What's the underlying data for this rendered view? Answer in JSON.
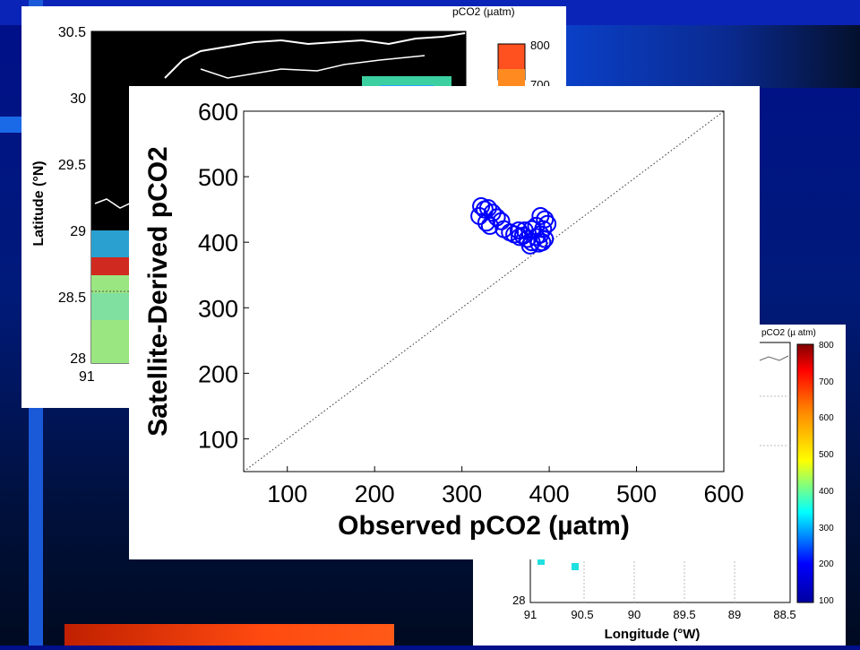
{
  "background_colors": {
    "primary": "#000f8a",
    "band": "#0a24b8",
    "strip": "#1a5ad8",
    "accent_bar": "#ff4a10"
  },
  "map_back": {
    "colorbar_title": "pCO2 (µatm)",
    "colorbar_ticks": [
      "800",
      "700"
    ],
    "y_ticks": [
      "30.5",
      "30",
      "29.5",
      "29",
      "28.5",
      "28"
    ],
    "ylabel": "Latitude (°N)",
    "x_tick_visible": "91"
  },
  "map_right": {
    "colorbar_title": "pCO2 (µ atm)",
    "colorbar_ticks": [
      "800",
      "700",
      "600",
      "500",
      "400",
      "300",
      "200",
      "100"
    ],
    "y_tick_visible": "28",
    "x_ticks": [
      "91",
      "90.5",
      "90",
      "89.5",
      "89",
      "88.5"
    ],
    "xlabel": "Longitude (°W)"
  },
  "chart_data": {
    "type": "scatter",
    "xlabel": "Observed pCO2 (µatm)",
    "ylabel": "Satellite-Derived pCO2",
    "xlim": [
      50,
      600
    ],
    "ylim": [
      50,
      600
    ],
    "x_ticks": [
      100,
      200,
      300,
      400,
      500,
      600
    ],
    "y_ticks": [
      100,
      200,
      300,
      400,
      500,
      600
    ],
    "reference_line": "1:1 dotted",
    "marker_color": "#0000ff",
    "points": [
      [
        322,
        455
      ],
      [
        326,
        450
      ],
      [
        330,
        452
      ],
      [
        320,
        440
      ],
      [
        335,
        445
      ],
      [
        328,
        430
      ],
      [
        340,
        438
      ],
      [
        345,
        432
      ],
      [
        332,
        425
      ],
      [
        348,
        420
      ],
      [
        355,
        415
      ],
      [
        360,
        412
      ],
      [
        365,
        418
      ],
      [
        370,
        410
      ],
      [
        375,
        405
      ],
      [
        380,
        400
      ],
      [
        378,
        395
      ],
      [
        385,
        408
      ],
      [
        390,
        412
      ],
      [
        395,
        405
      ],
      [
        392,
        400
      ],
      [
        388,
        398
      ],
      [
        393,
        420
      ],
      [
        390,
        440
      ],
      [
        395,
        435
      ],
      [
        398,
        428
      ],
      [
        385,
        425
      ],
      [
        380,
        420
      ],
      [
        372,
        418
      ],
      [
        366,
        408
      ]
    ]
  }
}
